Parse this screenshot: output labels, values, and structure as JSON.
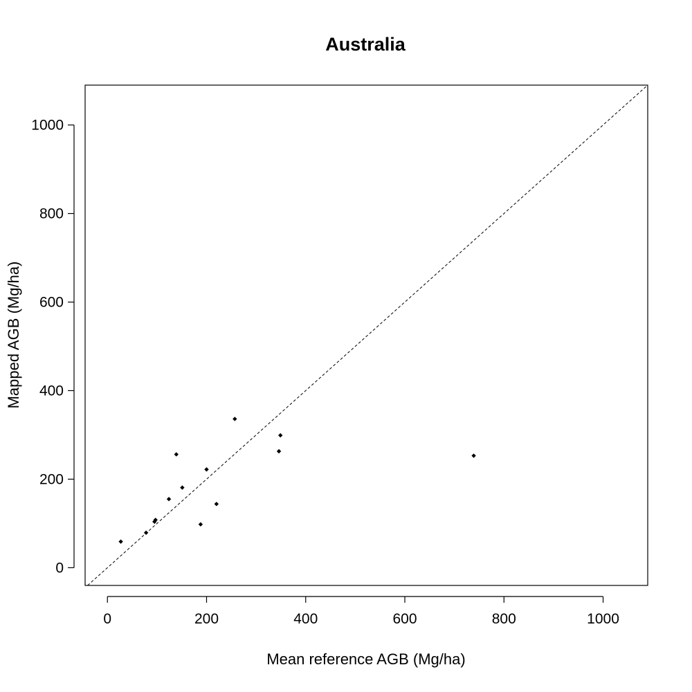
{
  "chart_data": {
    "type": "scatter",
    "title": "Australia",
    "xlabel": "Mean reference AGB (Mg/ha)",
    "ylabel": "Mapped AGB (Mg/ha)",
    "xlim": [
      -45,
      1090
    ],
    "ylim": [
      -40,
      1090
    ],
    "xticks": [
      0,
      200,
      400,
      600,
      800,
      1000
    ],
    "yticks": [
      0,
      200,
      400,
      600,
      800,
      1000
    ],
    "reference_line": "1:1 dashed",
    "grid": false,
    "series": [
      {
        "x": [
          27,
          78,
          95,
          97,
          124,
          139,
          151,
          188,
          200,
          220,
          257,
          346,
          349,
          739
        ],
        "y": [
          59,
          79,
          104,
          108,
          155,
          256,
          181,
          98,
          222,
          144,
          336,
          263,
          299,
          253
        ]
      }
    ]
  }
}
